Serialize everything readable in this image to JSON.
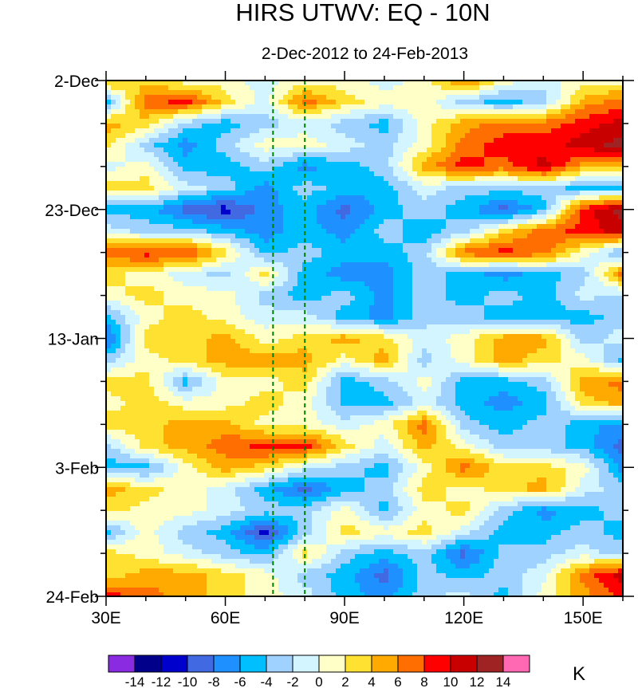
{
  "chart_data": {
    "type": "heatmap",
    "title": "HIRS UTWV: EQ - 10N",
    "subtitle": "2-Dec-2012 to 24-Feb-2013",
    "xlabel": "",
    "ylabel": "",
    "xlim": [
      30,
      160
    ],
    "ylim_days": [
      0,
      84
    ],
    "x_ticks": [
      30,
      60,
      90,
      120,
      150
    ],
    "x_tick_labels": [
      "30E",
      "60E",
      "90E",
      "120E",
      "150E"
    ],
    "y_ticks_days": [
      0,
      21,
      42,
      63,
      84
    ],
    "y_tick_labels": [
      "2-Dec",
      "23-Dec",
      "13-Jan",
      "3-Feb",
      "24-Feb"
    ],
    "reference_lines_lon": [
      72,
      80
    ],
    "grid_lon": [
      30,
      40,
      50,
      60,
      70,
      80,
      90,
      100,
      110,
      120,
      130,
      140,
      150,
      160
    ],
    "grid_day_step": 3.5,
    "values": [
      [
        5,
        3,
        1,
        1,
        -1,
        1,
        1,
        -1,
        1,
        7,
        1,
        -1,
        1,
        1
      ],
      [
        -5,
        7,
        9,
        3,
        -1,
        7,
        3,
        1,
        1,
        -3,
        -5,
        -3,
        5,
        7
      ],
      [
        5,
        3,
        -3,
        -5,
        -3,
        -1,
        -3,
        -5,
        1,
        5,
        7,
        7,
        9,
        11
      ],
      [
        3,
        -3,
        -7,
        -3,
        1,
        1,
        -1,
        -3,
        1,
        7,
        9,
        9,
        11,
        13
      ],
      [
        -1,
        1,
        -5,
        -5,
        -3,
        -7,
        -5,
        -3,
        5,
        9,
        7,
        11,
        5,
        3
      ],
      [
        3,
        3,
        -1,
        -3,
        -7,
        -3,
        -5,
        -5,
        -1,
        -3,
        -3,
        -3,
        -5,
        -5
      ],
      [
        -5,
        -5,
        -9,
        -11,
        -7,
        -5,
        -9,
        -5,
        -3,
        -5,
        -9,
        -5,
        9,
        13
      ],
      [
        -1,
        -3,
        -3,
        -5,
        -7,
        -5,
        -7,
        -3,
        -5,
        -3,
        3,
        7,
        9,
        11
      ],
      [
        7,
        9,
        9,
        3,
        -5,
        -3,
        -5,
        -5,
        -3,
        7,
        9,
        7,
        1,
        -5
      ],
      [
        3,
        1,
        -1,
        -3,
        3,
        -5,
        -7,
        -7,
        -3,
        -5,
        -7,
        -5,
        -3,
        7
      ],
      [
        1,
        3,
        1,
        1,
        -3,
        -5,
        -3,
        -7,
        -3,
        -5,
        -3,
        -5,
        -1,
        -3
      ],
      [
        -5,
        1,
        3,
        1,
        -1,
        -1,
        -5,
        -7,
        -3,
        -3,
        -5,
        -5,
        -5,
        -3
      ],
      [
        -9,
        3,
        3,
        5,
        1,
        3,
        5,
        3,
        -1,
        1,
        5,
        5,
        -3,
        -1
      ],
      [
        -3,
        1,
        3,
        5,
        5,
        5,
        1,
        5,
        -3,
        1,
        5,
        3,
        1,
        -5
      ],
      [
        3,
        3,
        -5,
        1,
        1,
        3,
        -5,
        -3,
        1,
        -5,
        -5,
        -3,
        5,
        7
      ],
      [
        1,
        3,
        1,
        1,
        3,
        1,
        -5,
        -5,
        -1,
        -5,
        -7,
        -5,
        3,
        5
      ],
      [
        3,
        3,
        5,
        5,
        1,
        1,
        -1,
        1,
        7,
        -3,
        -5,
        -3,
        -5,
        -7
      ],
      [
        -3,
        3,
        5,
        7,
        9,
        9,
        3,
        -1,
        5,
        1,
        -3,
        -3,
        -5,
        -9
      ],
      [
        -5,
        -5,
        1,
        5,
        3,
        -1,
        -3,
        -5,
        1,
        7,
        3,
        3,
        1,
        -7
      ],
      [
        5,
        3,
        1,
        -1,
        -5,
        -9,
        -5,
        -3,
        3,
        1,
        3,
        5,
        -1,
        -3
      ],
      [
        3,
        1,
        1,
        -1,
        -3,
        -3,
        1,
        -5,
        1,
        3,
        -3,
        -7,
        -5,
        -3
      ],
      [
        -5,
        1,
        -3,
        -5,
        -11,
        -3,
        3,
        1,
        3,
        -1,
        -5,
        -5,
        -3,
        -5
      ],
      [
        3,
        1,
        -1,
        -3,
        -5,
        3,
        -3,
        -5,
        -3,
        -9,
        -3,
        -3,
        -1,
        -3
      ],
      [
        3,
        5,
        5,
        3,
        1,
        -3,
        -5,
        -9,
        -3,
        -5,
        -3,
        -1,
        7,
        11
      ],
      [
        9,
        7,
        5,
        3,
        1,
        -1,
        -5,
        -7,
        -3,
        -1,
        -5,
        1,
        5,
        9
      ]
    ],
    "colorbar": {
      "levels": [
        -14,
        -12,
        -10,
        -8,
        -6,
        -4,
        -2,
        0,
        2,
        4,
        6,
        8,
        10,
        12,
        14
      ],
      "level_labels": [
        "-14",
        "-12",
        "-10",
        "-8",
        "-6",
        "-4",
        "-2",
        "0",
        "2",
        "4",
        "6",
        "8",
        "10",
        "12",
        "14"
      ],
      "colors": [
        "#8a2be2",
        "#00008b",
        "#0000cd",
        "#4169e1",
        "#1e90ff",
        "#00bfff",
        "#a0d2ff",
        "#d2f5ff",
        "#ffffc8",
        "#ffe132",
        "#ffaa00",
        "#ff6e00",
        "#ff0000",
        "#c80000",
        "#a02323",
        "#ff69b4"
      ],
      "unit": "K"
    },
    "reference_line_color": "#008000"
  }
}
